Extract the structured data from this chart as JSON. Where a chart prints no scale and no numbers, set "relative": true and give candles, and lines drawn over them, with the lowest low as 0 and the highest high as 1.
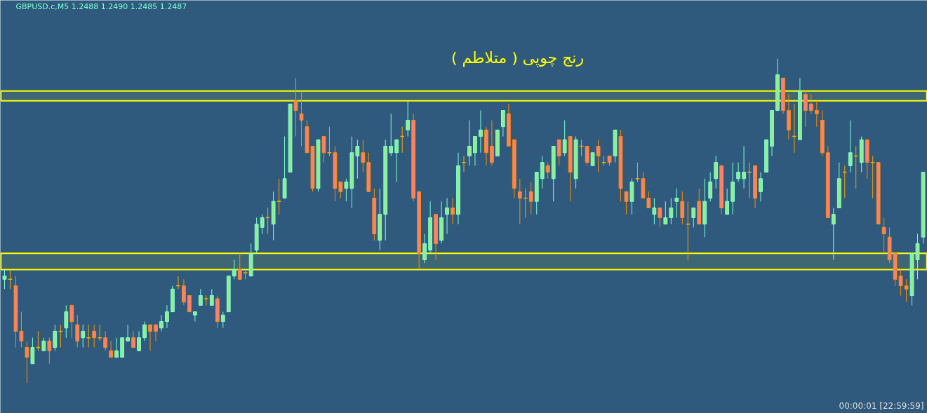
{
  "chart_data": {
    "type": "candlestick",
    "title": "رنج چوپی ( متلاطم )",
    "annotations": [
      "GBPUSD.c,M5  1.2488 1.2490 1.2485 1.2487",
      "00:00:01 [22:59:59]"
    ],
    "relative": true,
    "categories": [
      null,
      null,
      null,
      null,
      null,
      null,
      null,
      null,
      null,
      null,
      null,
      null,
      null,
      null,
      null,
      null,
      null,
      null,
      null,
      null,
      null,
      null,
      null,
      null,
      null,
      null,
      null,
      null,
      null,
      null,
      null,
      null,
      null,
      null,
      null,
      null,
      null,
      null,
      null,
      null,
      null,
      null,
      null,
      null,
      null,
      null,
      null,
      null,
      null,
      null,
      null,
      null,
      null,
      null,
      null,
      null,
      null,
      null,
      null,
      null,
      null,
      null,
      null,
      null,
      null,
      null,
      null,
      null,
      null,
      null,
      null,
      null,
      null,
      null,
      null,
      null,
      null,
      null,
      null,
      null,
      null,
      null,
      null,
      null,
      null,
      null,
      null,
      null,
      null,
      null,
      null,
      null,
      null,
      null,
      null,
      null,
      null,
      null,
      null,
      null,
      null,
      null,
      null,
      null,
      null,
      null,
      null,
      null,
      null,
      null,
      null,
      null,
      null,
      null,
      null,
      null,
      null,
      null,
      null,
      null,
      null,
      null,
      null,
      null,
      null,
      null,
      null,
      null,
      null,
      null,
      null,
      null,
      null,
      null,
      null,
      null,
      null,
      null,
      null,
      null,
      null,
      null,
      null,
      null,
      null,
      null,
      null,
      null,
      null,
      null,
      null,
      null,
      null,
      null,
      null,
      null,
      null,
      null,
      null,
      null,
      null,
      null,
      null,
      null,
      null
    ],
    "ohlc": [
      [
        0.32,
        0.35,
        0.29,
        0.33
      ],
      [
        0.32,
        0.35,
        0.29,
        0.32
      ],
      [
        0.3,
        0.33,
        0.11,
        0.16
      ],
      [
        0.16,
        0.22,
        0.11,
        0.13
      ],
      [
        0.11,
        0.13,
        0,
        0.08
      ],
      [
        0.06,
        0.14,
        0.06,
        0.11
      ],
      [
        0.11,
        0.16,
        0.1,
        0.11
      ],
      [
        0.1,
        0.14,
        0.1,
        0.13
      ],
      [
        0.13,
        0.14,
        0.06,
        0.1
      ],
      [
        0.11,
        0.18,
        0.1,
        0.16
      ],
      [
        0.16,
        0.18,
        0.11,
        0.16
      ],
      [
        0.17,
        0.24,
        0.14,
        0.22
      ],
      [
        0.24,
        0.24,
        0.14,
        0.19
      ],
      [
        0.18,
        0.21,
        0.11,
        0.13
      ],
      [
        0.14,
        0.18,
        0.11,
        0.16
      ],
      [
        0.14,
        0.18,
        0.11,
        0.14
      ],
      [
        0.16,
        0.18,
        0.11,
        0.14
      ],
      [
        0.14,
        0.18,
        0.13,
        0.14
      ],
      [
        0.14,
        0.16,
        0.1,
        0.11
      ],
      [
        0.1,
        0.13,
        0.08,
        0.08
      ],
      [
        0.08,
        0.14,
        0.08,
        0.1
      ],
      [
        0.08,
        0.14,
        0.08,
        0.14
      ],
      [
        0.13,
        0.18,
        0.13,
        0.14
      ],
      [
        0.14,
        0.16,
        0.11,
        0.11
      ],
      [
        0.1,
        0.16,
        0.1,
        0.14
      ],
      [
        0.14,
        0.19,
        0.13,
        0.18
      ],
      [
        0.18,
        0.18,
        0.1,
        0.16
      ],
      [
        0.18,
        0.18,
        0.13,
        0.16
      ],
      [
        0.17,
        0.21,
        0.16,
        0.19
      ],
      [
        0.19,
        0.24,
        0.17,
        0.22
      ],
      [
        0.22,
        0.3,
        0.22,
        0.29
      ],
      [
        0.3,
        0.33,
        0.29,
        0.3
      ],
      [
        0.3,
        0.32,
        0.24,
        0.25
      ],
      [
        0.27,
        0.27,
        0.22,
        0.22
      ],
      [
        0.21,
        0.22,
        0.19,
        0.22
      ],
      [
        0.24,
        0.29,
        0.24,
        0.27
      ],
      [
        0.26,
        0.27,
        0.24,
        0.26
      ],
      [
        0.24,
        0.29,
        0.24,
        0.27
      ],
      [
        0.26,
        0.27,
        0.17,
        0.19
      ],
      [
        0.19,
        0.22,
        0.17,
        0.21
      ],
      [
        0.22,
        0.33,
        0.22,
        0.33
      ],
      [
        0.33,
        0.38,
        0.32,
        0.35
      ],
      [
        0.35,
        0.4,
        0.32,
        0.32
      ],
      [
        0.34,
        0.35,
        0.32,
        0.34
      ],
      [
        0.33,
        0.43,
        0.33,
        0.4
      ],
      [
        0.41,
        0.51,
        0.4,
        0.49
      ],
      [
        0.48,
        0.52,
        0.46,
        0.51
      ],
      [
        0.51,
        0.54,
        0.46,
        0.51
      ],
      [
        0.49,
        0.59,
        0.44,
        0.56
      ],
      [
        0.56,
        0.63,
        0.52,
        0.56
      ],
      [
        0.57,
        0.76,
        0.57,
        0.63
      ],
      [
        0.65,
        0.86,
        0.65,
        0.86
      ],
      [
        0.87,
        0.94,
        0.76,
        0.84
      ],
      [
        0.83,
        0.9,
        0.73,
        0.81
      ],
      [
        0.79,
        0.81,
        0.71,
        0.71
      ],
      [
        0.73,
        0.73,
        0.59,
        0.6
      ],
      [
        0.6,
        0.75,
        0.59,
        0.75
      ],
      [
        0.76,
        0.76,
        0.68,
        0.71
      ],
      [
        0.71,
        0.79,
        0.7,
        0.71
      ],
      [
        0.71,
        0.73,
        0.56,
        0.6
      ],
      [
        0.62,
        0.62,
        0.57,
        0.59
      ],
      [
        0.6,
        0.63,
        0.56,
        0.62
      ],
      [
        0.6,
        0.76,
        0.54,
        0.71
      ],
      [
        0.7,
        0.75,
        0.63,
        0.73
      ],
      [
        0.71,
        0.75,
        0.65,
        0.68
      ],
      [
        0.68,
        0.71,
        0.59,
        0.59
      ],
      [
        0.57,
        0.6,
        0.44,
        0.46
      ],
      [
        0.44,
        0.6,
        0.41,
        0.52
      ],
      [
        0.52,
        0.75,
        0.44,
        0.73
      ],
      [
        0.71,
        0.83,
        0.7,
        0.73
      ],
      [
        0.71,
        0.75,
        0.62,
        0.75
      ],
      [
        0.76,
        0.79,
        0.71,
        0.76
      ],
      [
        0.78,
        0.87,
        0.76,
        0.81
      ],
      [
        0.81,
        0.83,
        0.56,
        0.57
      ],
      [
        0.59,
        0.59,
        0.35,
        0.4
      ],
      [
        0.38,
        0.46,
        0.37,
        0.43
      ],
      [
        0.41,
        0.56,
        0.4,
        0.51
      ],
      [
        0.52,
        0.52,
        0.38,
        0.43
      ],
      [
        0.44,
        0.56,
        0.43,
        0.51
      ],
      [
        0.52,
        0.57,
        0.46,
        0.54
      ],
      [
        0.54,
        0.57,
        0.49,
        0.52
      ],
      [
        0.52,
        0.71,
        0.49,
        0.67
      ],
      [
        0.68,
        0.7,
        0.65,
        0.68
      ],
      [
        0.7,
        0.81,
        0.67,
        0.73
      ],
      [
        0.71,
        0.76,
        0.67,
        0.76
      ],
      [
        0.76,
        0.84,
        0.71,
        0.78
      ],
      [
        0.78,
        0.79,
        0.67,
        0.71
      ],
      [
        0.73,
        0.81,
        0.67,
        0.68
      ],
      [
        0.7,
        0.78,
        0.7,
        0.78
      ],
      [
        0.79,
        0.84,
        0.76,
        0.84
      ],
      [
        0.83,
        0.86,
        0.73,
        0.73
      ],
      [
        0.75,
        0.75,
        0.57,
        0.6
      ],
      [
        0.59,
        0.63,
        0.49,
        0.57
      ],
      [
        0.57,
        0.6,
        0.51,
        0.57
      ],
      [
        0.59,
        0.62,
        0.52,
        0.56
      ],
      [
        0.56,
        0.65,
        0.52,
        0.65
      ],
      [
        0.63,
        0.7,
        0.6,
        0.68
      ],
      [
        0.67,
        0.68,
        0.63,
        0.65
      ],
      [
        0.63,
        0.73,
        0.56,
        0.73
      ],
      [
        0.75,
        0.75,
        0.67,
        0.7
      ],
      [
        0.71,
        0.81,
        0.7,
        0.75
      ],
      [
        0.76,
        0.76,
        0.56,
        0.65
      ],
      [
        0.63,
        0.76,
        0.6,
        0.75
      ],
      [
        0.73,
        0.75,
        0.7,
        0.73
      ],
      [
        0.73,
        0.73,
        0.67,
        0.68
      ],
      [
        0.67,
        0.71,
        0.67,
        0.71
      ],
      [
        0.73,
        0.75,
        0.65,
        0.7
      ],
      [
        0.68,
        0.7,
        0.67,
        0.68
      ],
      [
        0.7,
        0.7,
        0.67,
        0.68
      ],
      [
        0.7,
        0.78,
        0.68,
        0.78
      ],
      [
        0.76,
        0.78,
        0.56,
        0.6
      ],
      [
        0.59,
        0.59,
        0.52,
        0.56
      ],
      [
        0.56,
        0.63,
        0.52,
        0.62
      ],
      [
        0.63,
        0.68,
        0.62,
        0.63
      ],
      [
        0.63,
        0.65,
        0.57,
        0.57
      ],
      [
        0.57,
        0.59,
        0.54,
        0.54
      ],
      [
        0.52,
        0.57,
        0.49,
        0.54
      ],
      [
        0.54,
        0.54,
        0.48,
        0.51
      ],
      [
        0.49,
        0.56,
        0.49,
        0.51
      ],
      [
        0.51,
        0.57,
        0.49,
        0.54
      ],
      [
        0.56,
        0.6,
        0.51,
        0.57
      ],
      [
        0.56,
        0.59,
        0.49,
        0.51
      ],
      [
        0.49,
        0.56,
        0.38,
        0.49
      ],
      [
        0.51,
        0.54,
        0.48,
        0.54
      ],
      [
        0.56,
        0.6,
        0.49,
        0.49
      ],
      [
        0.49,
        0.63,
        0.45,
        0.56
      ],
      [
        0.57,
        0.65,
        0.56,
        0.62
      ],
      [
        0.63,
        0.7,
        0.6,
        0.68
      ],
      [
        0.67,
        0.67,
        0.52,
        0.54
      ],
      [
        0.52,
        0.6,
        0.52,
        0.56
      ],
      [
        0.56,
        0.68,
        0.52,
        0.62
      ],
      [
        0.63,
        0.68,
        0.62,
        0.65
      ],
      [
        0.63,
        0.73,
        0.6,
        0.65
      ],
      [
        0.65,
        0.68,
        0.57,
        0.65
      ],
      [
        0.67,
        0.67,
        0.54,
        0.57
      ],
      [
        0.59,
        0.65,
        0.56,
        0.63
      ],
      [
        0.65,
        0.75,
        0.65,
        0.75
      ],
      [
        0.73,
        0.84,
        0.7,
        0.84
      ],
      [
        0.84,
        1,
        0.84,
        0.95
      ],
      [
        0.94,
        0.94,
        0.83,
        0.84
      ],
      [
        0.84,
        0.89,
        0.75,
        0.78
      ],
      [
        0.76,
        0.86,
        0.71,
        0.76
      ],
      [
        0.75,
        0.94,
        0.75,
        0.9
      ],
      [
        0.89,
        0.9,
        0.79,
        0.84
      ],
      [
        0.86,
        0.89,
        0.83,
        0.84
      ],
      [
        0.84,
        0.87,
        0.79,
        0.83
      ],
      [
        0.81,
        0.84,
        0.7,
        0.71
      ],
      [
        0.71,
        0.73,
        0.51,
        0.51
      ],
      [
        0.49,
        0.54,
        0.38,
        0.52
      ],
      [
        0.54,
        0.68,
        0.54,
        0.63
      ],
      [
        0.65,
        0.67,
        0.57,
        0.65
      ],
      [
        0.67,
        0.81,
        0.65,
        0.71
      ],
      [
        0.7,
        0.73,
        0.6,
        0.7
      ],
      [
        0.68,
        0.76,
        0.65,
        0.75
      ],
      [
        0.75,
        0.75,
        0.63,
        0.68
      ],
      [
        0.68,
        0.7,
        0.57,
        0.68
      ],
      [
        0.68,
        0.68,
        0.49,
        0.49
      ],
      [
        0.48,
        0.51,
        0.4,
        0.46
      ],
      [
        0.45,
        0.48,
        0.37,
        0.38
      ],
      [
        0.4,
        0.4,
        0.3,
        0.32
      ],
      [
        0.33,
        0.35,
        0.27,
        0.3
      ],
      [
        0.3,
        0.32,
        0.25,
        0.29
      ],
      [
        0.27,
        0.4,
        0.24,
        0.4
      ],
      [
        0.38,
        0.46,
        0.32,
        0.43
      ],
      [
        0.45,
        0.65,
        0.43,
        0.65
      ]
    ],
    "bands": [
      {
        "axis": "y",
        "from": 0.87,
        "to": 0.9,
        "color": "#ffff00"
      },
      {
        "axis": "y",
        "from": 0.35,
        "to": 0.4,
        "color": "#ffff00"
      }
    ]
  }
}
